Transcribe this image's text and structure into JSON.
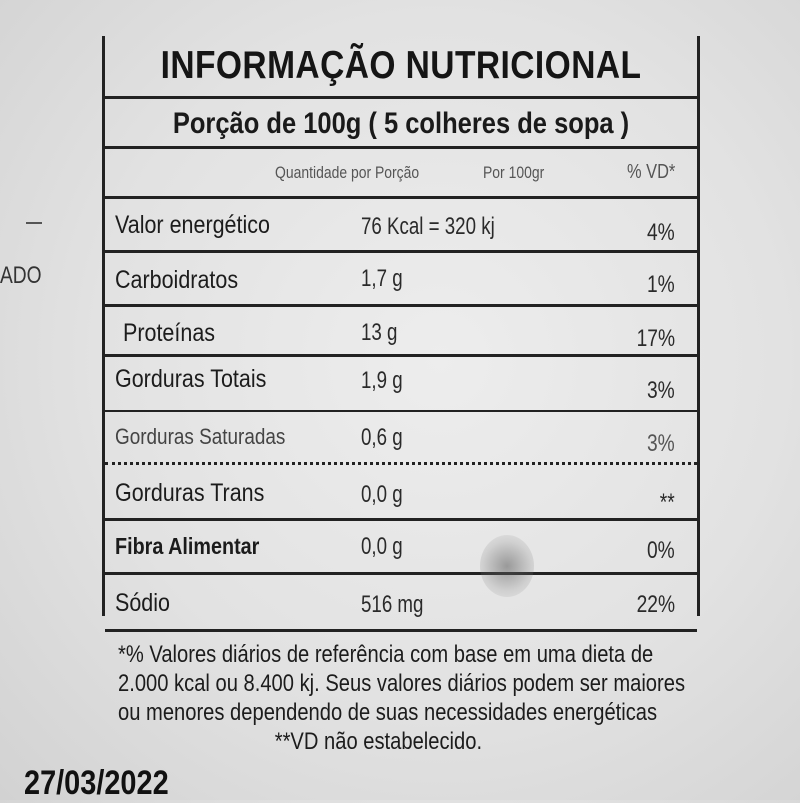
{
  "side_text": "ADO",
  "label": {
    "title": "INFORMAÇÃO NUTRICIONAL",
    "portion": "Porção de 100g ( 5 colheres de sopa )",
    "columns": {
      "quantity": "Quantidade por Porção",
      "per": "Por 100gr",
      "vd": "% VD*"
    },
    "rows": [
      {
        "name": "Valor energético",
        "amount": "76 Kcal = 320 kj",
        "vd": "4%"
      },
      {
        "name": "Carboidratos",
        "amount": "1,7 g",
        "vd": "1%"
      },
      {
        "name": "Proteínas",
        "amount": "13 g",
        "vd": "17%"
      },
      {
        "name": "Gorduras Totais",
        "amount": "1,9 g",
        "vd": "3%"
      },
      {
        "name": "Gorduras Saturadas",
        "amount": "0,6 g",
        "vd": "3%"
      },
      {
        "name": "Gorduras Trans",
        "amount": "0,0 g",
        "vd": "**"
      },
      {
        "name": "Fibra Alimentar",
        "amount": "0,0 g",
        "vd": "0%"
      },
      {
        "name": "Sódio",
        "amount": "516 mg",
        "vd": "22%"
      }
    ]
  },
  "footnote": {
    "line1": "*% Valores diários de referência com base em uma dieta de",
    "line2": "2.000 kcal ou 8.400 kj. Seus valores diários podem ser maiores",
    "line3": "ou menores dependendo de suas necessidades energéticas",
    "line4": "**VD não estabelecido."
  },
  "date": "27/03/2022"
}
